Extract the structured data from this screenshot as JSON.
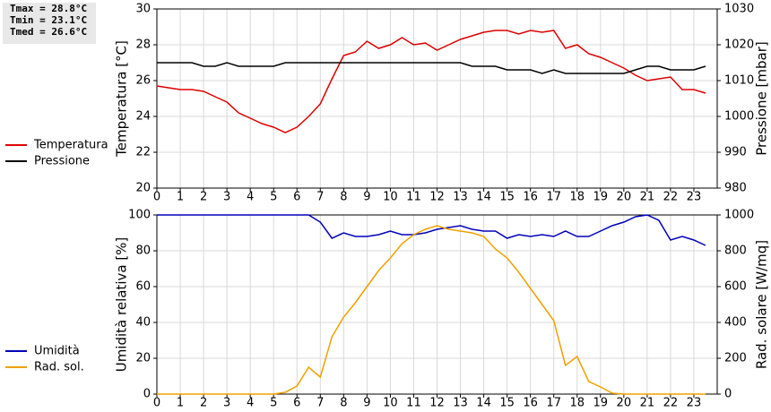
{
  "stats": [
    "Tmax = 28.8°C",
    "Tmin = 23.1°C",
    "Tmed = 26.6°C"
  ],
  "chart_data": [
    {
      "type": "line",
      "ylabel": "Temperatura [°C]",
      "y2label": "Pressione [mbar]",
      "x": [
        0,
        0.5,
        1,
        1.5,
        2,
        2.5,
        3,
        3.5,
        4,
        4.5,
        5,
        5.5,
        6,
        6.5,
        7,
        7.5,
        8,
        8.5,
        9,
        9.5,
        10,
        10.5,
        11,
        11.5,
        12,
        12.5,
        13,
        13.5,
        14,
        14.5,
        15,
        15.5,
        16,
        16.5,
        17,
        17.5,
        18,
        18.5,
        19,
        19.5,
        20,
        20.5,
        21,
        21.5,
        22,
        22.5,
        23,
        23.5
      ],
      "xlim": [
        0,
        24
      ],
      "xticks": [
        0,
        1,
        2,
        3,
        4,
        5,
        6,
        7,
        8,
        9,
        10,
        11,
        12,
        13,
        14,
        15,
        16,
        17,
        18,
        19,
        20,
        21,
        22,
        23
      ],
      "ylim": [
        20,
        30
      ],
      "yticks": [
        20,
        22,
        24,
        26,
        28,
        30
      ],
      "y2lim": [
        980,
        1030
      ],
      "y2ticks": [
        980,
        990,
        1000,
        1010,
        1020,
        1030
      ],
      "grid": true,
      "legend": "left",
      "series": [
        {
          "name": "Temperatura",
          "color": "#dd0000",
          "values": [
            25.7,
            25.6,
            25.5,
            25.5,
            25.4,
            25.1,
            24.8,
            24.2,
            23.9,
            23.6,
            23.4,
            23.1,
            23.4,
            24.0,
            24.7,
            26.1,
            27.4,
            27.6,
            28.2,
            27.8,
            28.0,
            28.4,
            28.0,
            28.1,
            27.7,
            28.0,
            28.3,
            28.5,
            28.7,
            28.8,
            28.8,
            28.6,
            28.8,
            28.7,
            28.8,
            27.8,
            28.0,
            27.5,
            27.3,
            27.0,
            26.7,
            26.3,
            26.0,
            26.1,
            26.2,
            25.5,
            25.5,
            25.3
          ]
        },
        {
          "name": "Pressione",
          "color": "#000000",
          "axis": "y2",
          "values": [
            1015,
            1015,
            1015,
            1015,
            1014,
            1014,
            1015,
            1014,
            1014,
            1014,
            1014,
            1015,
            1015,
            1015,
            1015,
            1015,
            1015,
            1015,
            1015,
            1015,
            1015,
            1015,
            1015,
            1015,
            1015,
            1015,
            1015,
            1014,
            1014,
            1014,
            1013,
            1013,
            1013,
            1012,
            1013,
            1012,
            1012,
            1012,
            1012,
            1012,
            1012,
            1013,
            1014,
            1014,
            1013,
            1013,
            1013,
            1014
          ]
        }
      ]
    },
    {
      "type": "line",
      "ylabel": "Umidità relativa [%]",
      "y2label": "Rad. solare [W/mq]",
      "x": [
        0,
        0.5,
        1,
        1.5,
        2,
        2.5,
        3,
        3.5,
        4,
        4.5,
        5,
        5.5,
        6,
        6.5,
        7,
        7.5,
        8,
        8.5,
        9,
        9.5,
        10,
        10.5,
        11,
        11.5,
        12,
        12.5,
        13,
        13.5,
        14,
        14.5,
        15,
        15.5,
        16,
        16.5,
        17,
        17.5,
        18,
        18.5,
        19,
        19.5,
        20,
        20.5,
        21,
        21.5,
        22,
        22.5,
        23,
        23.5
      ],
      "xlim": [
        0,
        24
      ],
      "xticks": [
        0,
        1,
        2,
        3,
        4,
        5,
        6,
        7,
        8,
        9,
        10,
        11,
        12,
        13,
        14,
        15,
        16,
        17,
        18,
        19,
        20,
        21,
        22,
        23
      ],
      "ylim": [
        0,
        100
      ],
      "yticks": [
        0,
        20,
        40,
        60,
        80,
        100
      ],
      "y2lim": [
        0,
        1000
      ],
      "y2ticks": [
        0,
        200,
        400,
        600,
        800,
        1000
      ],
      "grid": true,
      "legend": "left",
      "series": [
        {
          "name": "Umidità",
          "color": "#0000bb",
          "values": [
            100,
            100,
            100,
            100,
            100,
            100,
            100,
            100,
            100,
            100,
            100,
            100,
            100,
            100,
            96,
            87,
            90,
            88,
            88,
            89,
            91,
            89,
            89,
            90,
            92,
            93,
            94,
            92,
            91,
            91,
            87,
            89,
            88,
            89,
            88,
            91,
            88,
            88,
            91,
            94,
            96,
            99,
            100,
            97,
            86,
            88,
            86,
            83
          ]
        },
        {
          "name": "Rad. sol.",
          "color": "#f0a000",
          "axis": "y2",
          "values": [
            0,
            0,
            0,
            0,
            0,
            0,
            0,
            0,
            0,
            0,
            0,
            10,
            45,
            150,
            95,
            320,
            430,
            510,
            600,
            690,
            760,
            840,
            890,
            920,
            940,
            920,
            910,
            900,
            880,
            810,
            760,
            680,
            590,
            500,
            410,
            160,
            210,
            70,
            40,
            5,
            0,
            0,
            0,
            0,
            0,
            0,
            0,
            0
          ]
        }
      ]
    }
  ]
}
